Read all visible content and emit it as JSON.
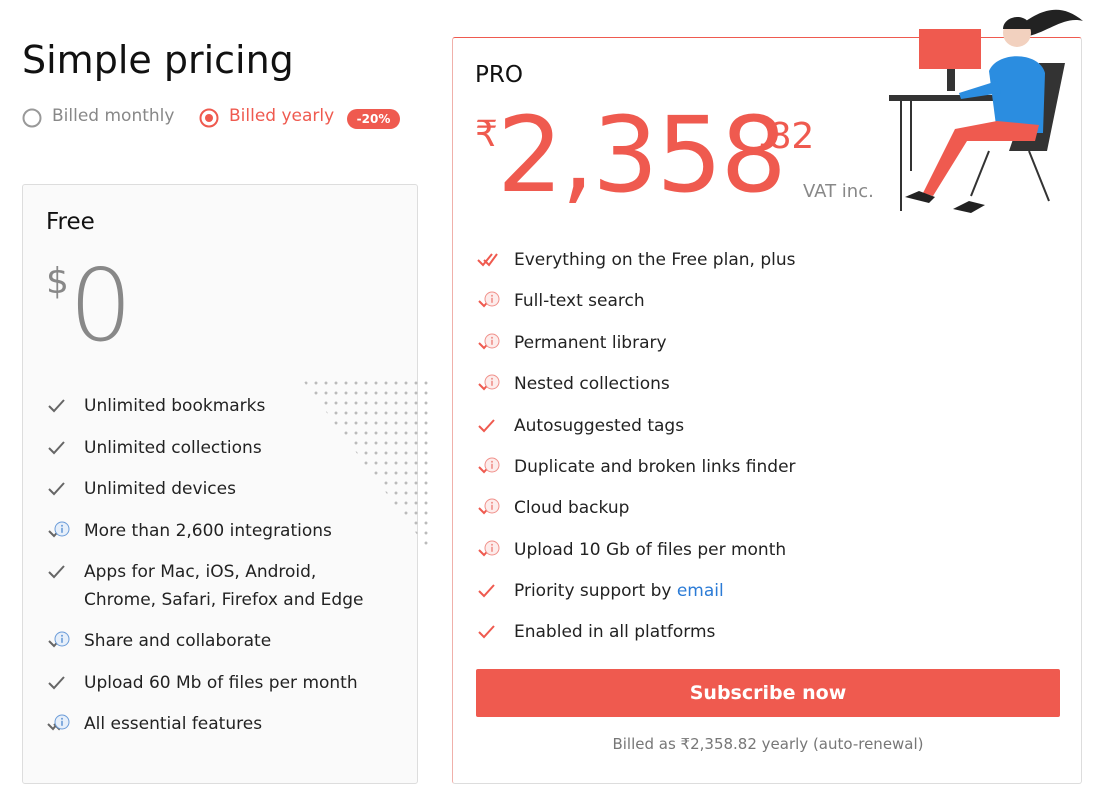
{
  "header": {
    "title": "Simple pricing"
  },
  "billing": {
    "monthly": "Billed monthly",
    "yearly": "Billed yearly",
    "discount": "-20%"
  },
  "free_plan": {
    "name": "Free",
    "currency": "$",
    "price": "0",
    "features": [
      {
        "text": "Unlimited bookmarks",
        "icon": "single",
        "info": false
      },
      {
        "text": "Unlimited collections",
        "icon": "single",
        "info": false
      },
      {
        "text": "Unlimited devices",
        "icon": "single",
        "info": false
      },
      {
        "text": "More than 2,600 integrations",
        "icon": "single",
        "info": true
      },
      {
        "text": "Apps for Mac, iOS, Android, Chrome, Safari, Firefox and Edge",
        "icon": "single",
        "info": false
      },
      {
        "text": "Share and collaborate",
        "icon": "single",
        "info": true
      },
      {
        "text": "Upload 60 Mb of files per month",
        "icon": "single",
        "info": false
      },
      {
        "text": "All essential features",
        "icon": "double",
        "info": true
      }
    ]
  },
  "pro_plan": {
    "name": "PRO",
    "currency": "₹",
    "price": "2,358",
    "cents": ".82",
    "tax_note": "VAT inc.",
    "features": [
      {
        "text": "Everything on the Free plan, plus",
        "icon": "double",
        "info": false
      },
      {
        "text": "Full-text search",
        "icon": "single",
        "info": true
      },
      {
        "text": "Permanent library",
        "icon": "single",
        "info": true
      },
      {
        "text": "Nested collections",
        "icon": "single",
        "info": true
      },
      {
        "text": "Autosuggested tags",
        "icon": "single",
        "info": false
      },
      {
        "text": "Duplicate and broken links finder",
        "icon": "single",
        "info": true
      },
      {
        "text": "Cloud backup",
        "icon": "single",
        "info": true
      },
      {
        "text": "Upload 10 Gb of files per month",
        "icon": "single",
        "info": true
      },
      {
        "text": "Priority support by",
        "link": "email",
        "icon": "single",
        "info": false
      },
      {
        "text": "Enabled in all platforms",
        "icon": "single",
        "info": false
      }
    ],
    "button": "Subscribe now",
    "billing_note": "Billed as ₹2,358.82 yearly (auto-renewal)"
  }
}
